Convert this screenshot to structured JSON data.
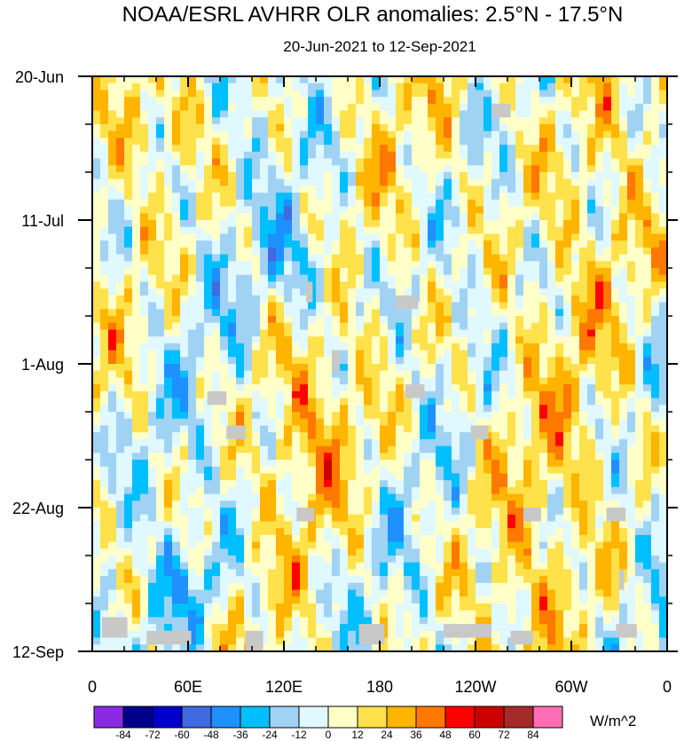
{
  "chart_data": {
    "type": "heatmap",
    "title": "NOAA/ESRL AVHRR OLR anomalies: 2.5°N - 17.5°N",
    "subtitle": "20-Jun-2021 to 12-Sep-2021",
    "x_ticks": [
      {
        "lon": 0,
        "label": "0"
      },
      {
        "lon": 60,
        "label": "60E"
      },
      {
        "lon": 120,
        "label": "120E"
      },
      {
        "lon": 180,
        "label": "180"
      },
      {
        "lon": 240,
        "label": "120W"
      },
      {
        "lon": 300,
        "label": "60W"
      },
      {
        "lon": 360,
        "label": "0"
      }
    ],
    "x_range": [
      0,
      360
    ],
    "y_ticks": [
      {
        "day": 0,
        "label": "20-Jun"
      },
      {
        "day": 21,
        "label": "11-Jul"
      },
      {
        "day": 42,
        "label": "1-Aug"
      },
      {
        "day": 63,
        "label": "22-Aug"
      },
      {
        "day": 84,
        "label": "12-Sep"
      }
    ],
    "y_range_days": [
      0,
      84
    ],
    "colorbar": {
      "unit": "W/m^2",
      "levels": [
        "-84",
        "-72",
        "-60",
        "-48",
        "-36",
        "-24",
        "-12",
        "0",
        "12",
        "24",
        "36",
        "48",
        "60",
        "72",
        "84"
      ],
      "colors": [
        "#8a2be2",
        "#00008b",
        "#0000cd",
        "#4169e1",
        "#1e90ff",
        "#00bfff",
        "#a0d2f4",
        "#e0f8ff",
        "#ffffc8",
        "#ffe14b",
        "#ffb400",
        "#ff7800",
        "#ff0000",
        "#cd0000",
        "#a52a2a",
        "#ff6eb4"
      ]
    }
  }
}
